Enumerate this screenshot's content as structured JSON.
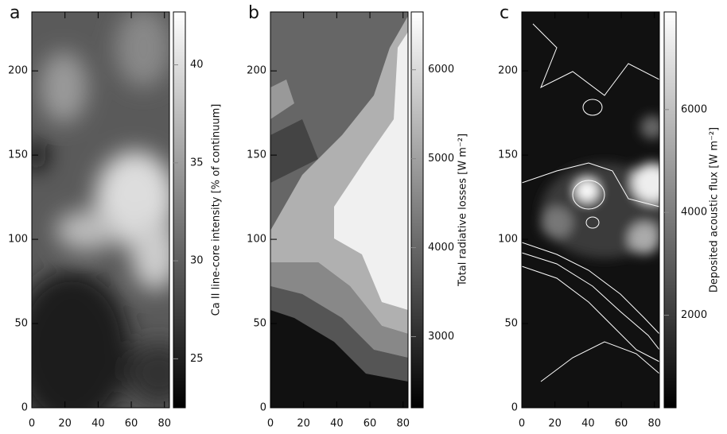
{
  "chart_data": [
    {
      "type": "heatmap",
      "panel_label": "a",
      "xlim": [
        0,
        83
      ],
      "xticks": [
        0,
        20,
        40,
        60,
        80
      ],
      "ylim": [
        0,
        235
      ],
      "yticks": [
        0,
        50,
        100,
        150,
        200
      ],
      "colorbar": {
        "label": "Ca II line-core intensity [% of continuum]",
        "lim": [
          22.5,
          42.7
        ],
        "ticks": [
          25,
          30,
          35,
          40
        ]
      }
    },
    {
      "type": "heatmap",
      "panel_label": "b",
      "xlim": [
        0,
        83
      ],
      "xticks": [
        0,
        20,
        40,
        60,
        80
      ],
      "ylim": [
        0,
        235
      ],
      "yticks": [
        0,
        50,
        100,
        150,
        200
      ],
      "colorbar": {
        "label": "Total radiative losses [W m⁻²]",
        "lim": [
          2200,
          6650
        ],
        "ticks": [
          3000,
          4000,
          5000,
          6000
        ]
      }
    },
    {
      "type": "heatmap",
      "panel_label": "c",
      "xlim": [
        0,
        83
      ],
      "xticks": [
        0,
        20,
        40,
        60,
        80
      ],
      "ylim": [
        0,
        235
      ],
      "yticks": [
        0,
        50,
        100,
        150,
        200
      ],
      "colorbar": {
        "label": "Deposited acoustic flux [W m⁻²]",
        "lim": [
          200,
          7900
        ],
        "ticks": [
          2000,
          4000,
          6000
        ]
      }
    }
  ]
}
